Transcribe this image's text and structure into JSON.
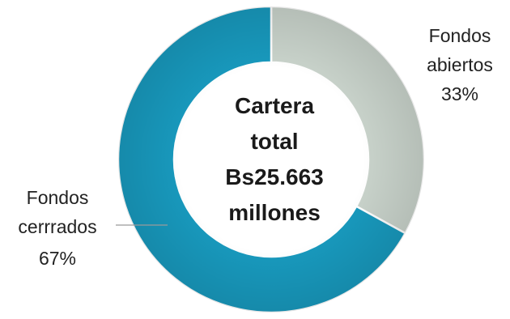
{
  "chart_data": {
    "type": "pie",
    "variant": "donut",
    "center_text": [
      "Cartera",
      "total",
      "Bs25.663",
      "millones"
    ],
    "slices": [
      {
        "name": "Fondos abiertos",
        "label_lines": [
          "Fondos",
          "abiertos"
        ],
        "value_label": "33%",
        "value": 33,
        "color": "#C9D3CB"
      },
      {
        "name": "Fondos cerrados",
        "label_lines": [
          "Fondos",
          "cerrrados"
        ],
        "value_label": "67%",
        "value": 67,
        "color": "#1899BD"
      }
    ]
  }
}
